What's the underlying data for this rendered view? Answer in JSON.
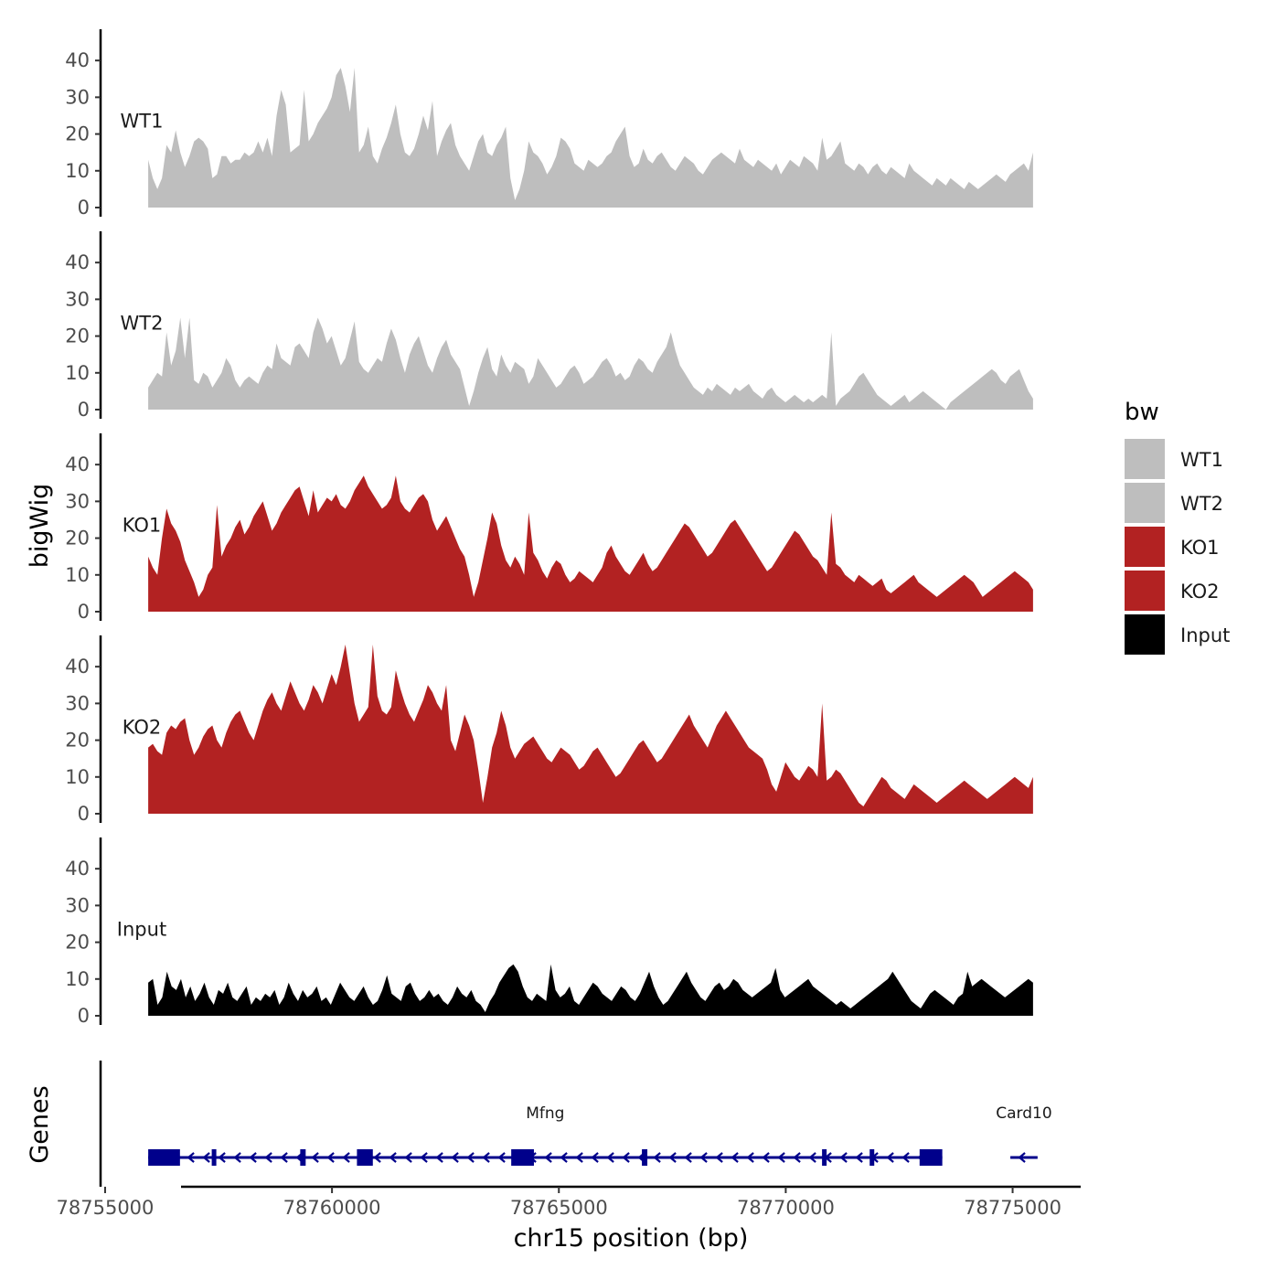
{
  "chart_data": {
    "type": "area",
    "xlabel": "chr15 position (bp)",
    "ylabel": "bigWig",
    "genes_label": "Genes",
    "xlim": [
      78754900,
      78776500
    ],
    "x_ticks": [
      78755000,
      78760000,
      78765000,
      78770000,
      78775000
    ],
    "x_tick_labels": [
      "78755000",
      "78760000",
      "78765000",
      "78770000",
      "78775000"
    ],
    "ylim": [
      0,
      48
    ],
    "y_ticks": [
      0,
      10,
      20,
      30,
      40
    ],
    "y_tick_labels": [
      "0",
      "10",
      "20",
      "30",
      "40"
    ],
    "x_start": 78755950,
    "x_end": 78775450,
    "legend": {
      "title": "bw",
      "entries": [
        {
          "label": "WT1",
          "color": "#bebebe"
        },
        {
          "label": "WT2",
          "color": "#bebebe"
        },
        {
          "label": "KO1",
          "color": "#b22222"
        },
        {
          "label": "KO2",
          "color": "#b22222"
        },
        {
          "label": "Input",
          "color": "#000000"
        }
      ]
    },
    "tracks": [
      {
        "name": "WT1",
        "color": "#bebebe",
        "values": [
          13,
          8,
          5,
          8,
          17,
          15,
          21,
          15,
          11,
          14,
          18,
          19,
          18,
          16,
          8,
          9,
          14,
          14,
          12,
          13,
          13,
          15,
          14,
          15,
          18,
          15,
          19,
          14,
          25,
          32,
          28,
          15,
          16,
          17,
          19,
          18,
          20,
          23,
          25,
          27,
          30,
          36,
          38,
          33,
          26,
          18,
          15,
          17,
          22,
          14,
          12,
          16,
          19,
          23,
          28,
          20,
          15,
          14,
          16,
          20,
          25,
          21,
          16,
          14,
          18,
          21,
          23,
          17,
          14,
          12,
          10,
          14,
          18,
          20,
          15,
          14,
          17,
          19,
          22,
          8,
          2,
          5,
          10,
          18,
          15,
          14,
          12,
          9,
          11,
          14,
          19,
          18,
          16,
          12,
          11,
          10,
          13,
          12,
          11,
          12,
          14,
          15,
          18,
          20,
          21,
          14,
          11,
          12,
          16,
          13,
          12,
          14,
          15,
          13,
          11,
          10,
          12,
          14,
          13,
          12,
          10,
          9,
          11,
          13,
          14,
          15,
          14,
          13,
          12,
          16,
          13,
          12,
          11,
          13,
          12,
          11,
          10,
          12,
          9,
          11,
          13,
          12,
          11,
          14,
          13,
          12,
          10,
          11,
          13,
          14,
          16,
          18,
          12,
          11,
          10,
          12,
          11,
          9,
          11,
          12,
          10,
          9,
          11,
          10,
          9,
          8,
          12,
          10,
          9,
          8,
          7,
          6,
          8,
          7,
          6,
          8,
          7,
          6,
          5,
          7,
          6,
          5,
          6,
          7,
          8,
          9,
          8,
          7,
          9,
          10,
          11,
          12,
          10,
          15
        ],
        "peaks": [
          [
            0.176,
            32
          ],
          [
            0.234,
            38
          ],
          [
            0.32,
            29
          ],
          [
            0.54,
            22
          ],
          [
            0.76,
            19
          ]
        ]
      },
      {
        "name": "WT2",
        "color": "#bebebe",
        "values": [
          6,
          8,
          10,
          9,
          21,
          12,
          16,
          25,
          14,
          11,
          8,
          7,
          10,
          9,
          6,
          8,
          10,
          14,
          12,
          8,
          6,
          8,
          9,
          8,
          7,
          10,
          12,
          11,
          18,
          14,
          13,
          12,
          17,
          18,
          16,
          14,
          21,
          25,
          22,
          18,
          20,
          16,
          12,
          14,
          19,
          15,
          13,
          11,
          10,
          12,
          14,
          13,
          18,
          22,
          19,
          14,
          10,
          15,
          18,
          20,
          16,
          12,
          10,
          14,
          17,
          19,
          15,
          13,
          11,
          6,
          1,
          5,
          10,
          14,
          17,
          11,
          9,
          15,
          12,
          10,
          13,
          12,
          11,
          7,
          9,
          14,
          12,
          10,
          8,
          6,
          7,
          9,
          11,
          12,
          10,
          7,
          8,
          9,
          11,
          13,
          14,
          12,
          9,
          10,
          8,
          9,
          12,
          14,
          13,
          11,
          10,
          13,
          15,
          17,
          21,
          16,
          12,
          10,
          8,
          6,
          5,
          4,
          6,
          5,
          7,
          6,
          5,
          4,
          6,
          5,
          6,
          7,
          5,
          4,
          3,
          5,
          6,
          4,
          3,
          2,
          3,
          4,
          3,
          2,
          3,
          2,
          3,
          4,
          3,
          2,
          1,
          3,
          4,
          5,
          7,
          9,
          10,
          8,
          6,
          4,
          3,
          2,
          1,
          2,
          3,
          4,
          2,
          3,
          4,
          5,
          4,
          3,
          2,
          1,
          0,
          2,
          3,
          4,
          5,
          6,
          7,
          8,
          9,
          10,
          11,
          10,
          8,
          7,
          9,
          10,
          11,
          8,
          5,
          3
        ],
        "peaks": [
          [
            0.045,
            25
          ],
          [
            0.232,
            24
          ],
          [
            0.77,
            21
          ]
        ]
      },
      {
        "name": "KO1",
        "color": "#b22222",
        "values": [
          15,
          12,
          10,
          20,
          28,
          24,
          22,
          19,
          14,
          11,
          8,
          4,
          6,
          10,
          12,
          11,
          15,
          18,
          20,
          22,
          25,
          21,
          23,
          26,
          28,
          30,
          26,
          22,
          24,
          27,
          29,
          31,
          33,
          34,
          30,
          26,
          25,
          27,
          29,
          31,
          30,
          32,
          29,
          28,
          30,
          33,
          35,
          37,
          34,
          32,
          30,
          28,
          29,
          31,
          33,
          30,
          28,
          27,
          29,
          31,
          32,
          30,
          25,
          22,
          24,
          26,
          23,
          20,
          17,
          15,
          10,
          4,
          8,
          14,
          20,
          27,
          24,
          18,
          14,
          12,
          15,
          13,
          10,
          12,
          16,
          14,
          11,
          9,
          12,
          14,
          13,
          10,
          8,
          9,
          11,
          10,
          9,
          8,
          10,
          12,
          16,
          18,
          15,
          13,
          11,
          10,
          12,
          14,
          16,
          13,
          11,
          12,
          14,
          16,
          18,
          20,
          22,
          24,
          23,
          21,
          19,
          17,
          15,
          16,
          18,
          20,
          22,
          24,
          25,
          23,
          21,
          19,
          17,
          15,
          13,
          11,
          12,
          14,
          16,
          18,
          20,
          22,
          21,
          19,
          17,
          15,
          14,
          12,
          10,
          11,
          13,
          12,
          10,
          9,
          8,
          10,
          9,
          8,
          7,
          8,
          9,
          6,
          5,
          6,
          7,
          8,
          9,
          10,
          8,
          7,
          6,
          5,
          4,
          5,
          6,
          7,
          8,
          9,
          10,
          9,
          8,
          6,
          4,
          5,
          6,
          7,
          8,
          9,
          10,
          11,
          10,
          9,
          8,
          6
        ],
        "peaks": [
          [
            0.08,
            29
          ],
          [
            0.1,
            23
          ],
          [
            0.185,
            33
          ],
          [
            0.282,
            37
          ],
          [
            0.43,
            27
          ],
          [
            0.77,
            27
          ]
        ]
      },
      {
        "name": "KO2",
        "color": "#b22222",
        "values": [
          18,
          19,
          17,
          16,
          22,
          24,
          23,
          25,
          26,
          20,
          16,
          18,
          21,
          23,
          24,
          20,
          18,
          22,
          25,
          27,
          28,
          25,
          22,
          20,
          24,
          28,
          31,
          33,
          30,
          28,
          32,
          36,
          33,
          30,
          28,
          31,
          35,
          33,
          30,
          34,
          38,
          35,
          40,
          46,
          38,
          30,
          25,
          27,
          29,
          36,
          32,
          28,
          27,
          29,
          32,
          34,
          30,
          27,
          25,
          28,
          31,
          35,
          33,
          30,
          28,
          24,
          20,
          17,
          22,
          27,
          24,
          20,
          12,
          3,
          10,
          18,
          22,
          28,
          24,
          18,
          15,
          17,
          19,
          20,
          21,
          19,
          17,
          15,
          14,
          16,
          18,
          17,
          16,
          14,
          12,
          13,
          15,
          17,
          18,
          16,
          14,
          12,
          10,
          11,
          13,
          15,
          17,
          19,
          20,
          18,
          16,
          14,
          15,
          17,
          19,
          21,
          23,
          25,
          27,
          24,
          22,
          20,
          18,
          21,
          24,
          26,
          28,
          26,
          24,
          22,
          20,
          18,
          17,
          16,
          15,
          12,
          8,
          6,
          10,
          14,
          12,
          10,
          9,
          11,
          13,
          12,
          10,
          8,
          9,
          10,
          12,
          11,
          9,
          7,
          5,
          3,
          2,
          4,
          6,
          8,
          10,
          9,
          7,
          6,
          5,
          4,
          6,
          8,
          7,
          6,
          5,
          4,
          3,
          4,
          5,
          6,
          7,
          8,
          9,
          8,
          7,
          6,
          5,
          4,
          5,
          6,
          7,
          8,
          9,
          10,
          9,
          8,
          7,
          10
        ],
        "peaks": [
          [
            0.255,
            46
          ],
          [
            0.28,
            39
          ],
          [
            0.337,
            35
          ],
          [
            0.76,
            30
          ]
        ]
      },
      {
        "name": "Input",
        "color": "#000000",
        "values": [
          9,
          10,
          3,
          5,
          12,
          8,
          7,
          10,
          5,
          8,
          4,
          6,
          9,
          5,
          3,
          7,
          6,
          9,
          5,
          4,
          6,
          8,
          3,
          5,
          4,
          6,
          5,
          7,
          3,
          5,
          9,
          6,
          4,
          7,
          5,
          6,
          8,
          4,
          5,
          3,
          6,
          9,
          7,
          5,
          4,
          6,
          8,
          5,
          3,
          4,
          7,
          11,
          6,
          5,
          4,
          8,
          9,
          6,
          4,
          5,
          7,
          5,
          6,
          4,
          3,
          5,
          8,
          6,
          5,
          7,
          4,
          3,
          1,
          4,
          6,
          9,
          11,
          13,
          14,
          12,
          8,
          5,
          4,
          6,
          5,
          4,
          6,
          7,
          5,
          6,
          8,
          4,
          3,
          5,
          7,
          9,
          8,
          6,
          5,
          4,
          6,
          8,
          7,
          5,
          4,
          6,
          9,
          12,
          8,
          5,
          3,
          4,
          6,
          8,
          10,
          12,
          9,
          7,
          5,
          4,
          6,
          8,
          9,
          7,
          8,
          10,
          9,
          7,
          6,
          5,
          6,
          7,
          8,
          9,
          8,
          7,
          5,
          6,
          7,
          8,
          9,
          10,
          8,
          7,
          6,
          5,
          4,
          3,
          4,
          3,
          2,
          3,
          4,
          5,
          6,
          7,
          8,
          9,
          10,
          12,
          10,
          8,
          6,
          4,
          3,
          2,
          4,
          6,
          7,
          6,
          5,
          4,
          3,
          5,
          6,
          7,
          8,
          9,
          10,
          9,
          8,
          7,
          6,
          5,
          6,
          7,
          8,
          9,
          10,
          9
        ],
        "peaks": [
          [
            0.455,
            14
          ],
          [
            0.71,
            13
          ],
          [
            0.925,
            12
          ]
        ]
      }
    ],
    "genes": [
      {
        "name": "Mfng",
        "strand": "-",
        "start": 78755950,
        "end": 78773450,
        "exons": [
          [
            78755950,
            78756650
          ],
          [
            78757350,
            78757420
          ],
          [
            78759300,
            78759420
          ],
          [
            78760550,
            78760900
          ],
          [
            78763950,
            78764450
          ],
          [
            78766830,
            78766950
          ],
          [
            78770800,
            78770900
          ],
          [
            78771850,
            78771950
          ],
          [
            78772950,
            78773450
          ]
        ]
      },
      {
        "name": "Card10",
        "strand": "-",
        "start": 78774950,
        "end": 78775550,
        "exons": []
      }
    ]
  }
}
